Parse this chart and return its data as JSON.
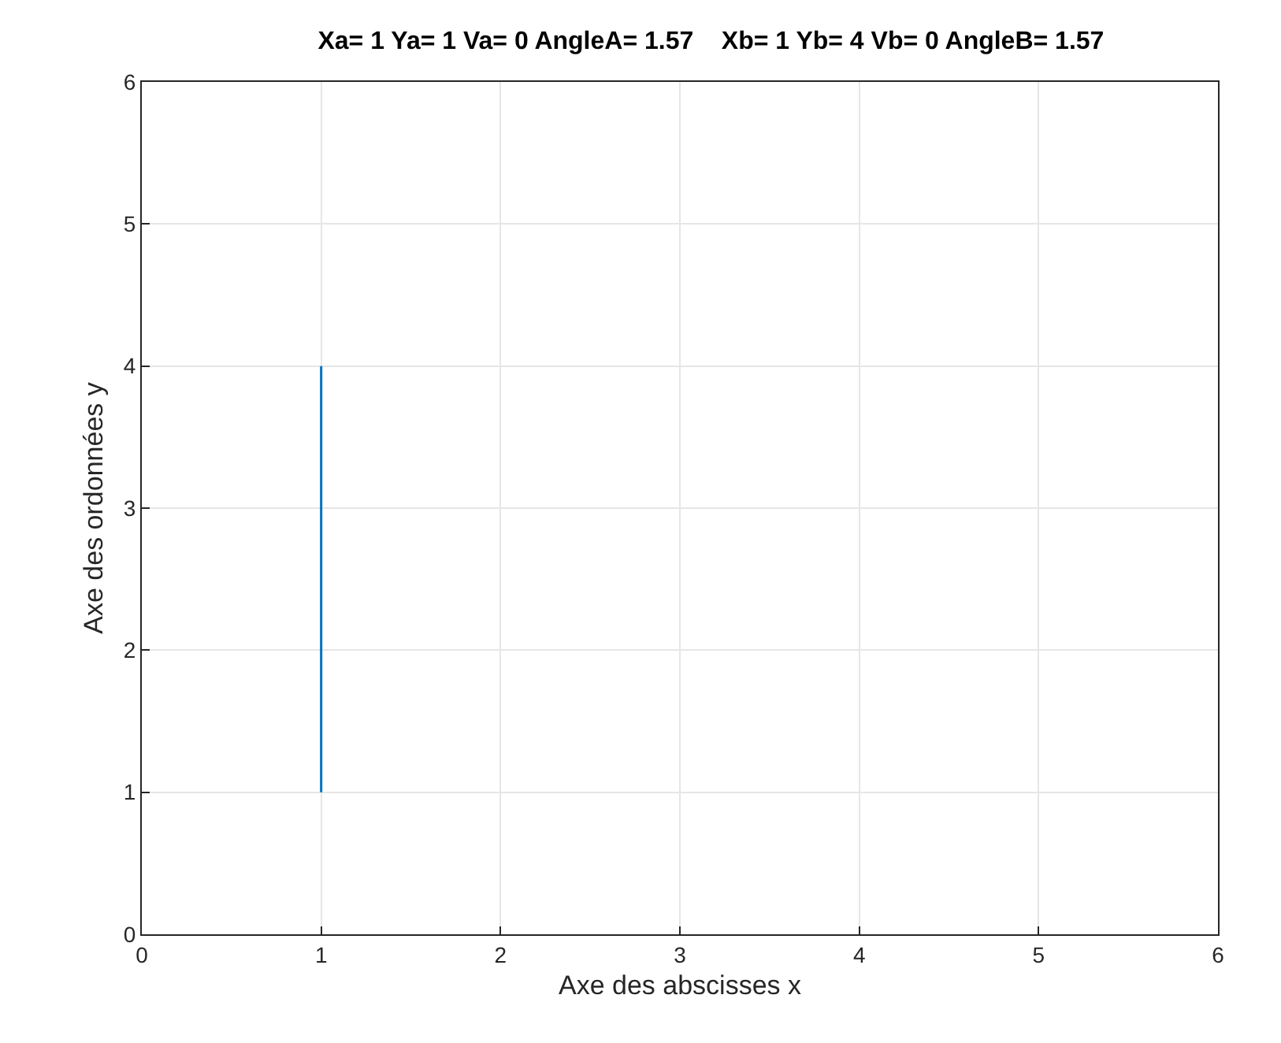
{
  "chart_data": {
    "type": "line",
    "title": "Xa= 1 Ya= 1 Va= 0 AngleA= 1.57    Xb= 1 Yb= 4 Vb= 0 AngleB= 1.57",
    "xlabel": "Axe des abscisses x",
    "ylabel": "Axe des ordonnées y",
    "x": [
      1,
      1
    ],
    "series": [
      {
        "color": "#0072bd",
        "values": [
          1,
          4
        ]
      }
    ],
    "xlim": [
      0,
      6
    ],
    "ylim": [
      0,
      6
    ],
    "xticks": [
      0,
      1,
      2,
      3,
      4,
      5,
      6
    ],
    "yticks": [
      0,
      1,
      2,
      3,
      4,
      5,
      6
    ],
    "grid": true
  }
}
